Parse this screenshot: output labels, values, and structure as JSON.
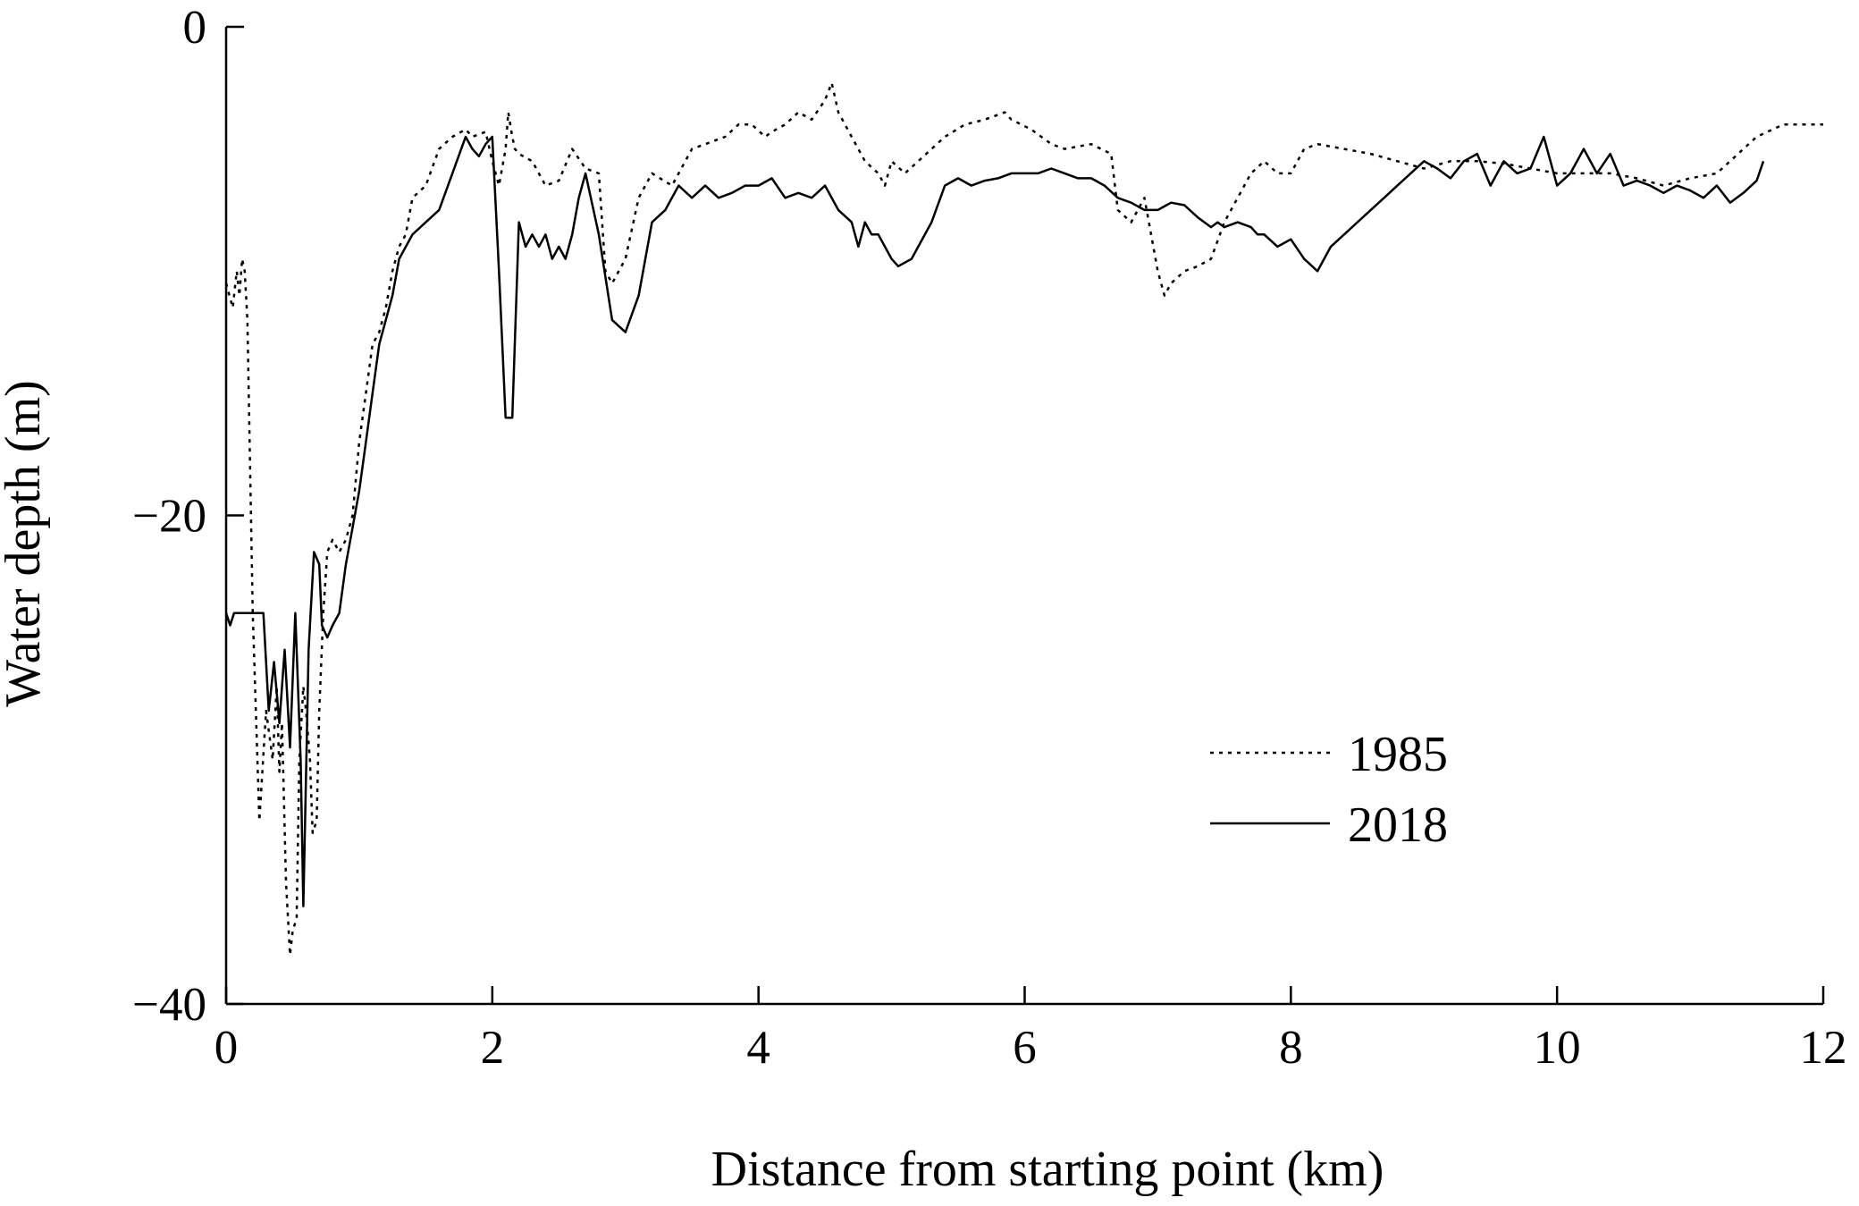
{
  "chart_data": {
    "type": "line",
    "title": "",
    "xlabel": "Distance from starting point (km)",
    "ylabel": "Water depth (m)",
    "xlim": [
      0,
      12
    ],
    "ylim": [
      -40,
      0
    ],
    "xticks": [
      0,
      2,
      4,
      6,
      8,
      10,
      12
    ],
    "yticks": [
      0,
      -20,
      -40
    ],
    "xtick_labels": [
      "0",
      "2",
      "4",
      "6",
      "8",
      "10",
      "12"
    ],
    "ytick_labels": [
      "0",
      "−20",
      "−40"
    ],
    "grid": false,
    "legend_position": "lower-right",
    "series": [
      {
        "name": "1985",
        "style": "dotted",
        "color": "#000000",
        "x": [
          0.0,
          0.05,
          0.08,
          0.1,
          0.12,
          0.14,
          0.16,
          0.2,
          0.25,
          0.3,
          0.35,
          0.38,
          0.4,
          0.42,
          0.45,
          0.48,
          0.5,
          0.53,
          0.55,
          0.58,
          0.6,
          0.63,
          0.65,
          0.68,
          0.7,
          0.73,
          0.76,
          0.8,
          0.85,
          0.9,
          0.95,
          1.0,
          1.05,
          1.1,
          1.15,
          1.2,
          1.25,
          1.3,
          1.35,
          1.4,
          1.5,
          1.6,
          1.7,
          1.8,
          1.85,
          1.9,
          1.95,
          2.0,
          2.05,
          2.1,
          2.12,
          2.15,
          2.17,
          2.2,
          2.3,
          2.4,
          2.5,
          2.6,
          2.7,
          2.8,
          2.85,
          2.9,
          3.0,
          3.1,
          3.2,
          3.35,
          3.5,
          3.6,
          3.75,
          3.85,
          3.95,
          4.05,
          4.1,
          4.2,
          4.3,
          4.4,
          4.5,
          4.55,
          4.6,
          4.7,
          4.8,
          4.9,
          4.95,
          5.0,
          5.1,
          5.2,
          5.3,
          5.4,
          5.55,
          5.7,
          5.85,
          5.9,
          6.05,
          6.2,
          6.3,
          6.5,
          6.65,
          6.7,
          6.8,
          6.9,
          7.0,
          7.05,
          7.1,
          7.2,
          7.3,
          7.4,
          7.5,
          7.6,
          7.7,
          7.8,
          7.9,
          8.0,
          8.1,
          8.2,
          8.4,
          8.6,
          8.8,
          9.0,
          9.2,
          9.4,
          9.6,
          9.8,
          10.0,
          10.2,
          10.4,
          10.6,
          10.8,
          11.0,
          11.2,
          11.3,
          11.5,
          11.7,
          12.0
        ],
        "y": [
          -10.5,
          -11.5,
          -10.0,
          -11.0,
          -9.5,
          -10.0,
          -12.0,
          -24.0,
          -32.5,
          -28.0,
          -30.0,
          -27.0,
          -30.5,
          -28.5,
          -35.0,
          -38.0,
          -37.0,
          -36.5,
          -30.0,
          -27.0,
          -28.0,
          -30.0,
          -33.0,
          -32.5,
          -28.0,
          -24.0,
          -21.5,
          -21.0,
          -21.5,
          -21.0,
          -20.0,
          -17.0,
          -15.0,
          -13.0,
          -12.5,
          -11.5,
          -10.0,
          -9.0,
          -8.5,
          -7.0,
          -6.5,
          -5.0,
          -4.5,
          -4.2,
          -4.5,
          -4.4,
          -4.3,
          -5.5,
          -6.5,
          -5.0,
          -3.5,
          -4.5,
          -5.0,
          -5.2,
          -5.5,
          -6.5,
          -6.3,
          -5.0,
          -5.8,
          -6.0,
          -10.0,
          -10.5,
          -9.5,
          -7.0,
          -6.0,
          -6.5,
          -5.0,
          -4.8,
          -4.5,
          -4.0,
          -4.0,
          -4.5,
          -4.3,
          -4.0,
          -3.5,
          -3.8,
          -3.0,
          -2.3,
          -3.5,
          -4.5,
          -5.5,
          -6.0,
          -6.5,
          -5.5,
          -6.0,
          -5.5,
          -5.0,
          -4.5,
          -4.0,
          -3.8,
          -3.5,
          -3.8,
          -4.2,
          -4.8,
          -5.0,
          -4.8,
          -5.2,
          -7.5,
          -8.0,
          -7.0,
          -10.0,
          -11.0,
          -10.5,
          -10.0,
          -9.8,
          -9.5,
          -8.0,
          -7.0,
          -6.0,
          -5.5,
          -6.0,
          -6.0,
          -5.0,
          -4.8,
          -5.0,
          -5.2,
          -5.5,
          -5.8,
          -5.5,
          -5.5,
          -5.6,
          -5.8,
          -6.0,
          -6.0,
          -6.0,
          -6.2,
          -6.5,
          -6.2,
          -6.0,
          -5.5,
          -4.5,
          -4.0,
          -4.0
        ]
      },
      {
        "name": "2018",
        "style": "solid",
        "color": "#000000",
        "x": [
          0.0,
          0.03,
          0.06,
          0.08,
          0.12,
          0.2,
          0.28,
          0.32,
          0.36,
          0.4,
          0.44,
          0.48,
          0.52,
          0.56,
          0.58,
          0.62,
          0.66,
          0.7,
          0.72,
          0.76,
          0.8,
          0.85,
          0.9,
          0.95,
          1.0,
          1.05,
          1.1,
          1.15,
          1.2,
          1.25,
          1.3,
          1.4,
          1.5,
          1.6,
          1.7,
          1.8,
          1.85,
          1.9,
          1.95,
          2.0,
          2.05,
          2.1,
          2.15,
          2.2,
          2.25,
          2.3,
          2.35,
          2.4,
          2.45,
          2.5,
          2.55,
          2.6,
          2.65,
          2.7,
          2.8,
          2.9,
          3.0,
          3.1,
          3.2,
          3.3,
          3.4,
          3.5,
          3.6,
          3.7,
          3.8,
          3.9,
          4.0,
          4.1,
          4.2,
          4.3,
          4.4,
          4.5,
          4.6,
          4.7,
          4.75,
          4.8,
          4.85,
          4.9,
          5.0,
          5.05,
          5.15,
          5.3,
          5.4,
          5.5,
          5.6,
          5.7,
          5.8,
          5.9,
          6.0,
          6.1,
          6.2,
          6.3,
          6.4,
          6.5,
          6.6,
          6.7,
          6.8,
          6.9,
          7.0,
          7.1,
          7.2,
          7.3,
          7.4,
          7.45,
          7.5,
          7.6,
          7.7,
          7.75,
          7.8,
          7.9,
          8.0,
          8.1,
          8.2,
          8.3,
          8.4,
          8.5,
          8.6,
          8.7,
          8.8,
          8.9,
          9.0,
          9.1,
          9.2,
          9.3,
          9.4,
          9.5,
          9.6,
          9.7,
          9.8,
          9.9,
          10.0,
          10.1,
          10.2,
          10.3,
          10.4,
          10.5,
          10.6,
          10.7,
          10.8,
          10.9,
          11.0,
          11.1,
          11.2,
          11.3,
          11.4,
          11.5,
          11.55
        ],
        "y": [
          -24.0,
          -24.5,
          -24.0,
          -24.0,
          -24.0,
          -24.0,
          -24.0,
          -28.0,
          -26.0,
          -28.5,
          -25.5,
          -29.5,
          -24.0,
          -30.0,
          -36.0,
          -25.5,
          -21.5,
          -22.0,
          -24.5,
          -25.0,
          -24.5,
          -24.0,
          -22.0,
          -20.5,
          -19.0,
          -17.0,
          -15.0,
          -13.0,
          -12.0,
          -11.0,
          -9.5,
          -8.5,
          -8.0,
          -7.5,
          -6.0,
          -4.5,
          -5.0,
          -5.3,
          -4.8,
          -4.5,
          -10.0,
          -16.0,
          -16.0,
          -8.0,
          -9.0,
          -8.5,
          -9.0,
          -8.5,
          -9.5,
          -9.0,
          -9.5,
          -8.5,
          -7.0,
          -6.0,
          -8.5,
          -12.0,
          -12.5,
          -11.0,
          -8.0,
          -7.5,
          -6.5,
          -7.0,
          -6.5,
          -7.0,
          -6.8,
          -6.5,
          -6.5,
          -6.2,
          -7.0,
          -6.8,
          -7.0,
          -6.5,
          -7.5,
          -8.0,
          -9.0,
          -8.0,
          -8.5,
          -8.5,
          -9.5,
          -9.8,
          -9.5,
          -8.0,
          -6.5,
          -6.2,
          -6.5,
          -6.3,
          -6.2,
          -6.0,
          -6.0,
          -6.0,
          -5.8,
          -6.0,
          -6.2,
          -6.2,
          -6.5,
          -7.0,
          -7.2,
          -7.5,
          -7.5,
          -7.2,
          -7.3,
          -7.8,
          -8.2,
          -8.0,
          -8.2,
          -8.0,
          -8.2,
          -8.5,
          -8.5,
          -9.0,
          -8.7,
          -9.5,
          -10.0,
          -9.0,
          -8.5,
          -8.0,
          -7.5,
          -7.0,
          -6.5,
          -6.0,
          -5.5,
          -5.8,
          -6.2,
          -5.5,
          -5.2,
          -6.5,
          -5.5,
          -6.0,
          -5.8,
          -4.5,
          -6.5,
          -6.0,
          -5.0,
          -6.0,
          -5.2,
          -6.5,
          -6.3,
          -6.5,
          -6.8,
          -6.5,
          -6.7,
          -7.0,
          -6.5,
          -7.2,
          -6.8,
          -6.3,
          -5.5
        ]
      }
    ]
  }
}
